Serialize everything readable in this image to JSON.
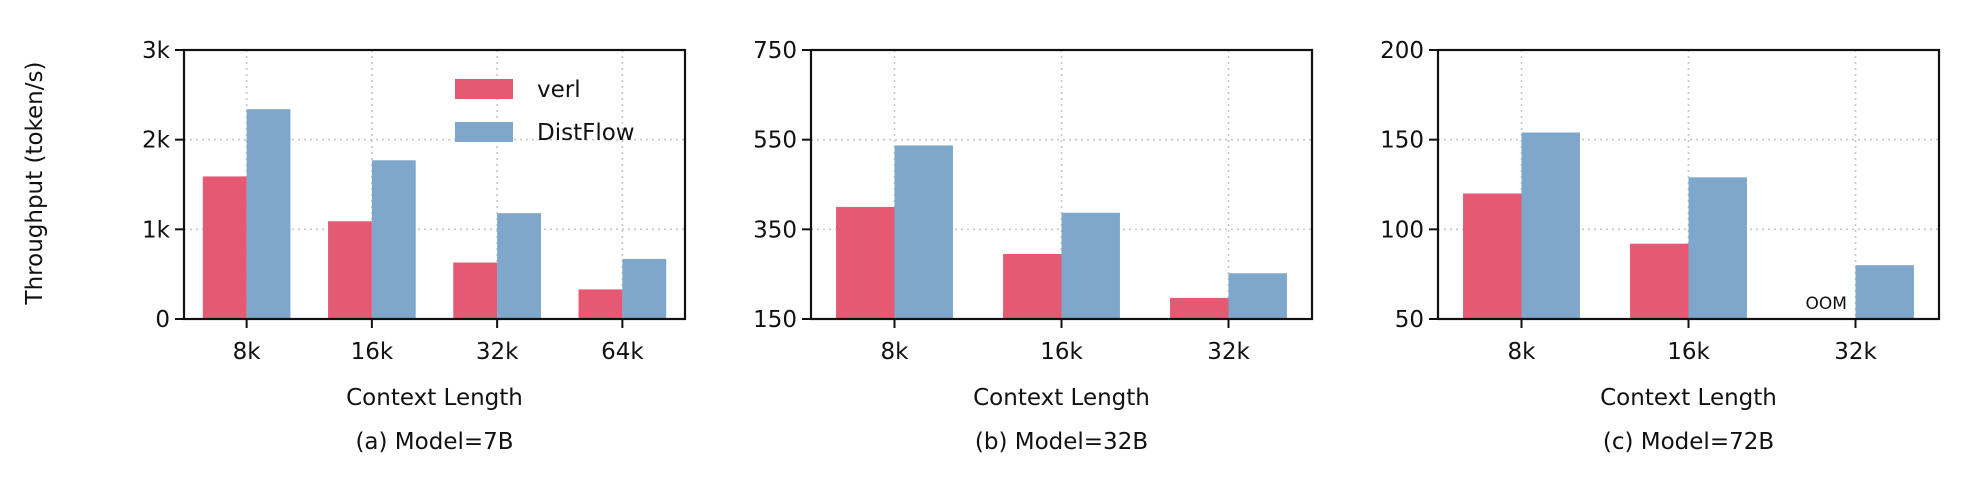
{
  "figure": {
    "ylabel": "Throughput (token/s)"
  },
  "colors": {
    "verl": "#e55a73",
    "DistFlow": "#7ea7cb"
  },
  "chart_data": [
    {
      "type": "bar",
      "caption": "(a) Model=7B",
      "xlabel": "Context Length",
      "categories": [
        "8k",
        "16k",
        "32k",
        "64k"
      ],
      "ylim": [
        0,
        3000
      ],
      "yticks": [
        0,
        1000,
        2000,
        3000
      ],
      "ytick_labels": [
        "0",
        "1k",
        "2k",
        "3k"
      ],
      "grid": true,
      "legend": "top-right",
      "series": [
        {
          "name": "verl",
          "values": [
            1590,
            1090,
            630,
            330
          ]
        },
        {
          "name": "DistFlow",
          "values": [
            2340,
            1770,
            1180,
            670
          ]
        }
      ],
      "annotations": []
    },
    {
      "type": "bar",
      "caption": "(b) Model=32B",
      "xlabel": "Context Length",
      "categories": [
        "8k",
        "16k",
        "32k"
      ],
      "ylim": [
        150,
        750
      ],
      "yticks": [
        150,
        350,
        550,
        750
      ],
      "ytick_labels": [
        "150",
        "350",
        "550",
        "750"
      ],
      "grid": true,
      "series": [
        {
          "name": "verl",
          "values": [
            400,
            295,
            197
          ]
        },
        {
          "name": "DistFlow",
          "values": [
            537,
            387,
            252
          ]
        }
      ],
      "annotations": []
    },
    {
      "type": "bar",
      "caption": "(c) Model=72B",
      "xlabel": "Context Length",
      "categories": [
        "8k",
        "16k",
        "32k"
      ],
      "ylim": [
        50,
        200
      ],
      "yticks": [
        50,
        100,
        150,
        200
      ],
      "ytick_labels": [
        "50",
        "100",
        "150",
        "200"
      ],
      "grid": true,
      "series": [
        {
          "name": "verl",
          "values": [
            120,
            92,
            null
          ]
        },
        {
          "name": "DistFlow",
          "values": [
            154,
            129,
            80
          ]
        }
      ],
      "annotations": [
        {
          "text": "OOM",
          "category": "32k",
          "series": "verl"
        }
      ]
    }
  ]
}
